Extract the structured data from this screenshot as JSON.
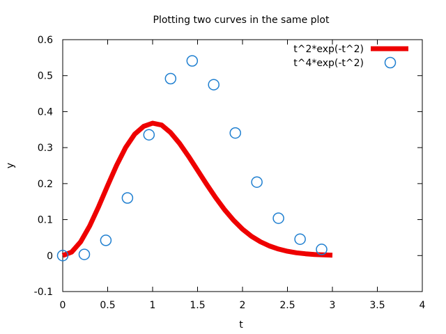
{
  "chart_data": {
    "type": "line",
    "title": "Plotting two curves in the same plot",
    "xlabel": "t",
    "ylabel": "y",
    "xlim": [
      0,
      4
    ],
    "ylim": [
      -0.1,
      0.6
    ],
    "xticks": [
      "0",
      "0.5",
      "1",
      "1.5",
      "2",
      "2.5",
      "3",
      "3.5",
      "4"
    ],
    "yticks": [
      "-0.1",
      "0",
      "0.1",
      "0.2",
      "0.3",
      "0.4",
      "0.5",
      "0.6"
    ],
    "grid": false,
    "legend_position": "top-right",
    "series": [
      {
        "name": "t^2*exp(-t^2)",
        "style": "line",
        "color": "#ee0000",
        "x": [
          0,
          0.1,
          0.2,
          0.3,
          0.4,
          0.5,
          0.6,
          0.7,
          0.8,
          0.9,
          1.0,
          1.1,
          1.2,
          1.3,
          1.4,
          1.5,
          1.6,
          1.7,
          1.8,
          1.9,
          2.0,
          2.1,
          2.2,
          2.3,
          2.4,
          2.5,
          2.6,
          2.7,
          2.8,
          2.9,
          3.0
        ],
        "y": [
          0,
          0.0099,
          0.0384,
          0.0823,
          0.1363,
          0.1947,
          0.2512,
          0.3003,
          0.3373,
          0.3591,
          0.3679,
          0.3627,
          0.3417,
          0.3117,
          0.2757,
          0.2371,
          0.1983,
          0.1614,
          0.1276,
          0.0982,
          0.0733,
          0.0536,
          0.0382,
          0.0266,
          0.0181,
          0.012,
          0.0078,
          0.005,
          0.0031,
          0.0019,
          0.0011
        ]
      },
      {
        "name": "t^4*exp(-t^2)",
        "style": "points",
        "color": "#1f7fd0",
        "x": [
          0,
          0.24,
          0.48,
          0.72,
          0.96,
          1.2,
          1.44,
          1.68,
          1.92,
          2.16,
          2.4,
          2.64,
          2.88
        ],
        "y": [
          0,
          0.0032,
          0.0423,
          0.1601,
          0.3357,
          0.4918,
          0.541,
          0.4749,
          0.3406,
          0.2042,
          0.1038,
          0.0457,
          0.0172
        ]
      }
    ]
  }
}
